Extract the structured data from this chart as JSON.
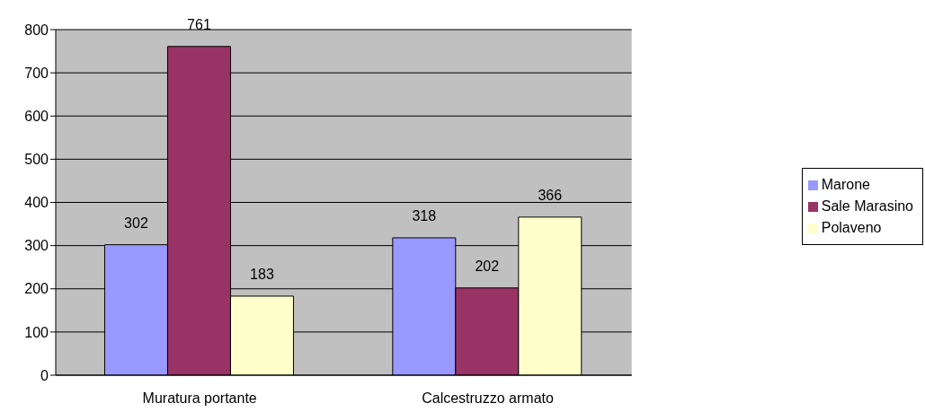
{
  "chart_data": {
    "type": "bar",
    "categories": [
      "Muratura portante",
      "Calcestruzzo armato"
    ],
    "series": [
      {
        "name": "Marone",
        "color": "#9999ff",
        "values": [
          302,
          318
        ]
      },
      {
        "name": "Sale Marasino",
        "color": "#993366",
        "values": [
          761,
          202
        ]
      },
      {
        "name": "Polaveno",
        "color": "#ffffcc",
        "values": [
          183,
          366
        ]
      }
    ],
    "ylim": [
      0,
      800
    ],
    "yticks": [
      0,
      100,
      200,
      300,
      400,
      500,
      600,
      700,
      800
    ],
    "grid": "y",
    "legend": "right",
    "data_labels": true
  }
}
